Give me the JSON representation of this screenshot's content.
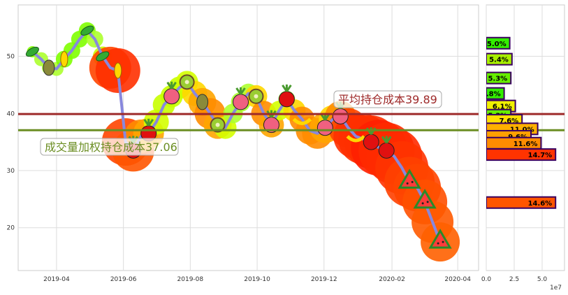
{
  "chart_data": [
    {
      "type": "line",
      "x_ticks": [
        "2019-04",
        "2019-06",
        "2019-08",
        "2019-10",
        "2019-12",
        "2020-02",
        "2020-04"
      ],
      "y_ticks": [
        "20",
        "30",
        "40",
        "50"
      ],
      "xlim": [
        "2019-02-25",
        "2020-04-20"
      ],
      "ylim": [
        12.5,
        59
      ],
      "grid": true,
      "series": [
        {
          "x": [
            "2019-03-10",
            "2019-03-18",
            "2019-03-25",
            "2019-04-01",
            "2019-04-08",
            "2019-04-15",
            "2019-04-22",
            "2019-04-29",
            "2019-05-06",
            "2019-05-13",
            "2019-05-20",
            "2019-05-27",
            "2019-06-03",
            "2019-06-10",
            "2019-06-17",
            "2019-06-24",
            "2019-07-01",
            "2019-07-08",
            "2019-07-15",
            "2019-07-22",
            "2019-07-29",
            "2019-08-05",
            "2019-08-12",
            "2019-08-19",
            "2019-08-26",
            "2019-09-02",
            "2019-09-09",
            "2019-09-16",
            "2019-09-23",
            "2019-09-30",
            "2019-10-07",
            "2019-10-14",
            "2019-10-21",
            "2019-10-28",
            "2019-11-04",
            "2019-11-11",
            "2019-11-18",
            "2019-11-25",
            "2019-12-02",
            "2019-12-09",
            "2019-12-16",
            "2019-12-23",
            "2019-12-30",
            "2020-01-06",
            "2020-01-13",
            "2020-01-20",
            "2020-01-27",
            "2020-02-03",
            "2020-02-10",
            "2020-02-17",
            "2020-02-24",
            "2020-03-02",
            "2020-03-09",
            "2020-03-16"
          ],
          "values": [
            50.8,
            49.5,
            48.0,
            47.8,
            49.5,
            51.0,
            53.0,
            54.5,
            53.0,
            50.0,
            48.0,
            47.5,
            35.0,
            33.5,
            36.0,
            36.5,
            38.5,
            41.5,
            43.0,
            44.5,
            45.5,
            43.5,
            42.0,
            40.0,
            38.0,
            37.5,
            40.0,
            42.0,
            43.5,
            43.0,
            40.0,
            38.0,
            40.5,
            42.5,
            40.5,
            39.0,
            37.0,
            36.5,
            37.5,
            39.0,
            39.5,
            37.5,
            36.0,
            35.5,
            35.0,
            34.0,
            33.5,
            32.5,
            30.5,
            28.0,
            27.0,
            24.5,
            21.0,
            17.5
          ],
          "colors": [
            "#7fff00",
            "#adff2f",
            "#adff2f",
            "#adff2f",
            "#7fff00",
            "#7fff00",
            "#7fff00",
            "#7fff00",
            "#adff2f",
            "#c8ff00",
            "#ff4500",
            "#ff3000",
            "#ff4500",
            "#ff5500",
            "#ff8c00",
            "#ffa500",
            "#d4ff00",
            "#c8ff00",
            "#c8ff00",
            "#c8ff00",
            "#d4ff00",
            "#ffd700",
            "#ffa500",
            "#ff8c00",
            "#ffa500",
            "#d4ff00",
            "#adff2f",
            "#adff2f",
            "#adff2f",
            "#ffd700",
            "#ff8c00",
            "#ffa500",
            "#d4ff00",
            "#adff2f",
            "#ffd700",
            "#ff8c00",
            "#ff8c00",
            "#ff8c00",
            "#ffa500",
            "#ffd700",
            "#ff8c00",
            "#ff4500",
            "#ff3000",
            "#ff3000",
            "#ff3000",
            "#ff2000",
            "#ff2a00",
            "#ff2a00",
            "#ff3300",
            "#ff4000",
            "#ff4500",
            "#ff5000",
            "#ff5a00",
            "#ff6000"
          ],
          "sizes": [
            8,
            10,
            10,
            10,
            12,
            12,
            12,
            12,
            12,
            14,
            30,
            32,
            34,
            30,
            24,
            22,
            18,
            16,
            16,
            16,
            16,
            18,
            20,
            22,
            20,
            16,
            14,
            14,
            14,
            16,
            18,
            18,
            14,
            12,
            16,
            18,
            20,
            22,
            22,
            20,
            22,
            28,
            32,
            36,
            38,
            40,
            40,
            40,
            38,
            36,
            34,
            32,
            30,
            28
          ],
          "color": "#8888dd"
        }
      ],
      "hlines": [
        {
          "y": 39.89,
          "color": "#9e2a2a",
          "label": "平均持仓成本39.89"
        },
        {
          "y": 37.06,
          "color": "#6b8e23",
          "label": "成交量加权持仓成本37.06"
        }
      ],
      "icons": [
        "pea-icon",
        "pear-icon",
        "corn-icon",
        "pea-icon",
        "pea-icon",
        "corn-icon",
        "strawberry-icon",
        "apple-icon",
        "radish-icon",
        "kiwi-icon",
        "pear-icon",
        "kiwi-icon",
        "radish-icon",
        "kiwi-icon",
        "radish-icon",
        "strawberry-icon",
        "banana-icon",
        "radish-icon",
        "radish-icon",
        "banana-icon",
        "apple-icon",
        "apple-icon",
        "watermelon-icon",
        "watermelon-icon",
        "watermelon-icon"
      ]
    },
    {
      "type": "bar",
      "orientation": "horizontal",
      "x_ticks": [
        "0.0",
        "2.5",
        "5.0"
      ],
      "x_offset_label": "1e7",
      "xlim": [
        0,
        7
      ],
      "y_shared": true,
      "bars": [
        {
          "y": 52.3,
          "value": 2.1,
          "label": "5.0%",
          "color": "#33ee00"
        },
        {
          "y": 49.5,
          "value": 2.3,
          "label": "5.4%",
          "color": "#a8f000"
        },
        {
          "y": 46.2,
          "value": 2.2,
          "label": "5.3%",
          "color": "#66ee00"
        },
        {
          "y": 43.5,
          "value": 1.6,
          "label": "3.8%",
          "color": "#33ee00"
        },
        {
          "y": 41.3,
          "value": 2.6,
          "label": "6.1%",
          "color": "#f0f000"
        },
        {
          "y": 39.7,
          "value": 2.2,
          "label": "5.3%",
          "color": "#66ee00"
        },
        {
          "y": 38.8,
          "value": 3.2,
          "label": "7.6%",
          "color": "#ffe000"
        },
        {
          "y": 37.3,
          "value": 4.6,
          "label": "11.0%",
          "color": "#ffb000"
        },
        {
          "y": 36.0,
          "value": 4.0,
          "label": "9.6%",
          "color": "#ffa000"
        },
        {
          "y": 34.8,
          "value": 4.9,
          "label": "11.6%",
          "color": "#ff8c00"
        },
        {
          "y": 32.8,
          "value": 6.2,
          "label": "14.7%",
          "color": "#ff3300"
        },
        {
          "y": 24.4,
          "value": 6.2,
          "label": "14.6%",
          "color": "#ff5500"
        }
      ]
    }
  ]
}
